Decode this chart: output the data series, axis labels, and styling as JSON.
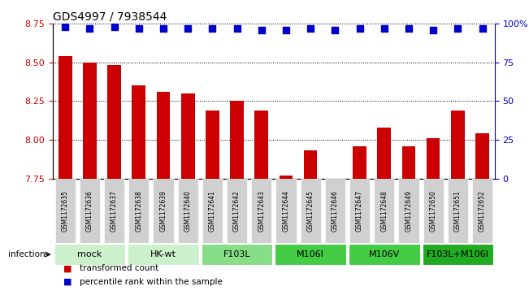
{
  "title": "GDS4997 / 7938544",
  "samples": [
    "GSM1172635",
    "GSM1172636",
    "GSM1172637",
    "GSM1172638",
    "GSM1172639",
    "GSM1172640",
    "GSM1172641",
    "GSM1172642",
    "GSM1172643",
    "GSM1172644",
    "GSM1172645",
    "GSM1172646",
    "GSM1172647",
    "GSM1172648",
    "GSM1172649",
    "GSM1172650",
    "GSM1172651",
    "GSM1172652"
  ],
  "bar_values": [
    8.54,
    8.5,
    8.48,
    8.35,
    8.31,
    8.3,
    8.19,
    8.25,
    8.19,
    7.77,
    7.93,
    7.73,
    7.96,
    8.08,
    7.96,
    8.01,
    8.19,
    8.04
  ],
  "percentile_values": [
    98,
    97,
    98,
    97,
    97,
    97,
    97,
    97,
    96,
    96,
    97,
    96,
    97,
    97,
    97,
    96,
    97,
    97
  ],
  "bar_color": "#cc0000",
  "dot_color": "#0000cc",
  "ylim_left": [
    7.75,
    8.75
  ],
  "ylim_right": [
    0,
    100
  ],
  "yticks_left": [
    7.75,
    8.0,
    8.25,
    8.5,
    8.75
  ],
  "yticks_right": [
    0,
    25,
    50,
    75,
    100
  ],
  "groups": [
    {
      "label": "mock",
      "start": 0,
      "end": 2,
      "color": "#ccf0cc"
    },
    {
      "label": "HK-wt",
      "start": 3,
      "end": 5,
      "color": "#ccf0cc"
    },
    {
      "label": "F103L",
      "start": 6,
      "end": 8,
      "color": "#88dd88"
    },
    {
      "label": "M106I",
      "start": 9,
      "end": 11,
      "color": "#44cc44"
    },
    {
      "label": "M106V",
      "start": 12,
      "end": 14,
      "color": "#44cc44"
    },
    {
      "label": "F103L+M106I",
      "start": 15,
      "end": 17,
      "color": "#22aa22"
    }
  ],
  "infection_label": "infection",
  "left_axis_color": "#cc0000",
  "right_axis_color": "#0000cc",
  "bar_width": 0.55,
  "tick_label_bg": "#d0d0d0",
  "background_color": "#ffffff",
  "legend_red_label": "transformed count",
  "legend_blue_label": "percentile rank within the sample"
}
